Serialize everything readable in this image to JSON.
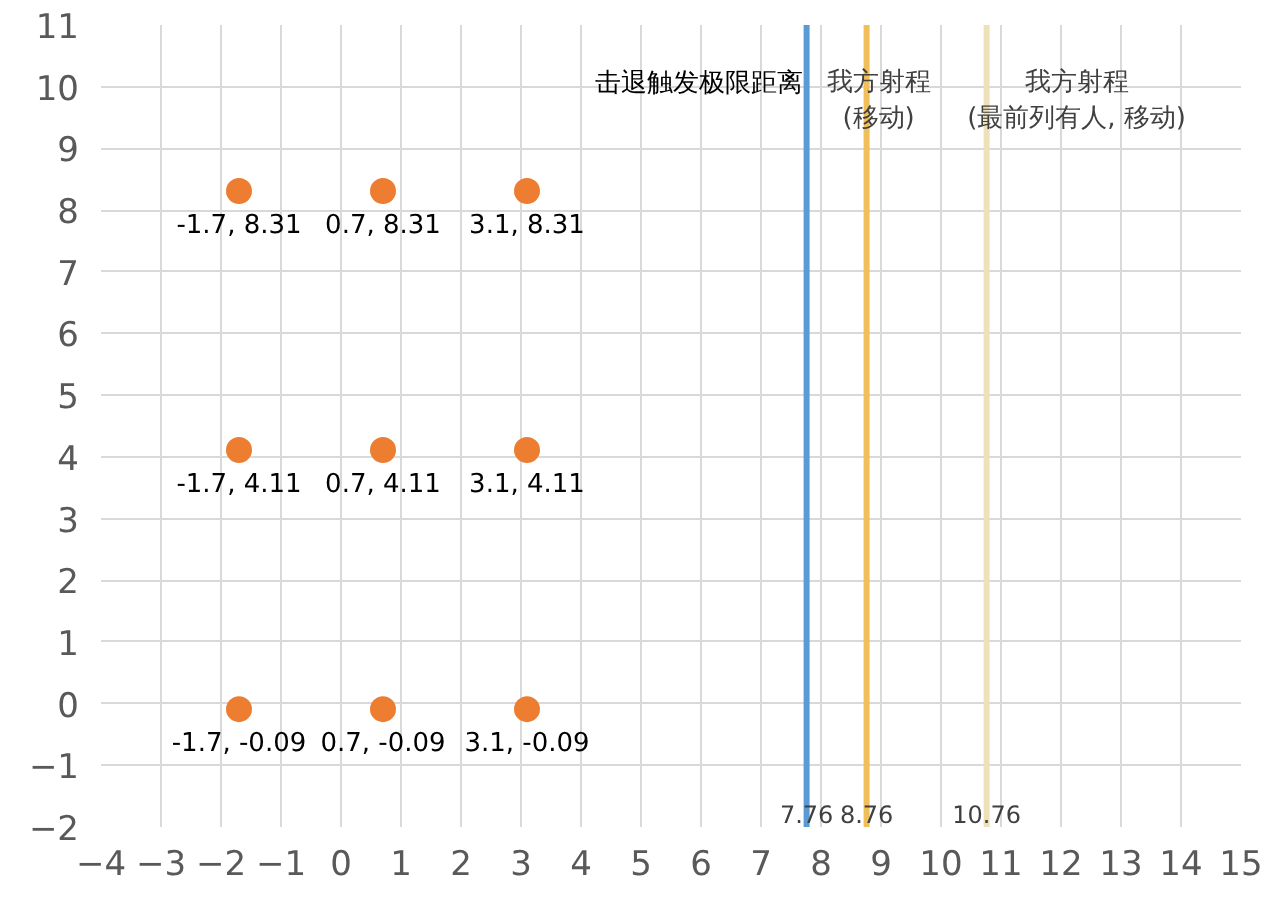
{
  "chart_data": {
    "type": "scatter",
    "xlim": [
      -4,
      15
    ],
    "ylim": [
      -2,
      11
    ],
    "xticks": [
      -4,
      -3,
      -2,
      -1,
      0,
      1,
      2,
      3,
      4,
      5,
      6,
      7,
      8,
      9,
      10,
      11,
      12,
      13,
      14,
      15
    ],
    "yticks": [
      -2,
      -1,
      0,
      1,
      2,
      3,
      4,
      5,
      6,
      7,
      8,
      9,
      10,
      11
    ],
    "grid": true,
    "marker": "circle",
    "series": [
      {
        "color": "#ed7d31",
        "x": [
          -1.7,
          0.7,
          3.1,
          -1.7,
          0.7,
          3.1,
          -1.7,
          0.7,
          3.1
        ],
        "values": [
          8.31,
          8.31,
          8.31,
          4.11,
          4.11,
          4.11,
          -0.09,
          -0.09,
          -0.09
        ],
        "value_labels": [
          "-1.7, 8.31",
          "0.7, 8.31",
          "3.1, 8.31",
          "-1.7, 4.11",
          "0.7, 4.11",
          "3.1, 4.11",
          "-1.7, -0.09",
          "0.7, -0.09",
          "3.1, -0.09"
        ]
      }
    ],
    "ref_lines": [
      {
        "axis": "x",
        "value": 7.76,
        "label": "击退触发极限距离",
        "color": "#5b9bd5"
      },
      {
        "axis": "x",
        "value": 8.76,
        "label": "我方射程\n(移动)",
        "color": "#f0bf5a"
      },
      {
        "axis": "x",
        "value": 10.76,
        "label": "我方射程\n(最前列有人, 移动)",
        "color": "#eee0b8"
      }
    ],
    "annotations": [
      {
        "text": "7.76",
        "x": 7.76,
        "y": -2
      },
      {
        "text": "8.76",
        "x": 8.76,
        "y": -2
      },
      {
        "text": "10.76",
        "x": 10.76,
        "y": -2
      }
    ]
  }
}
